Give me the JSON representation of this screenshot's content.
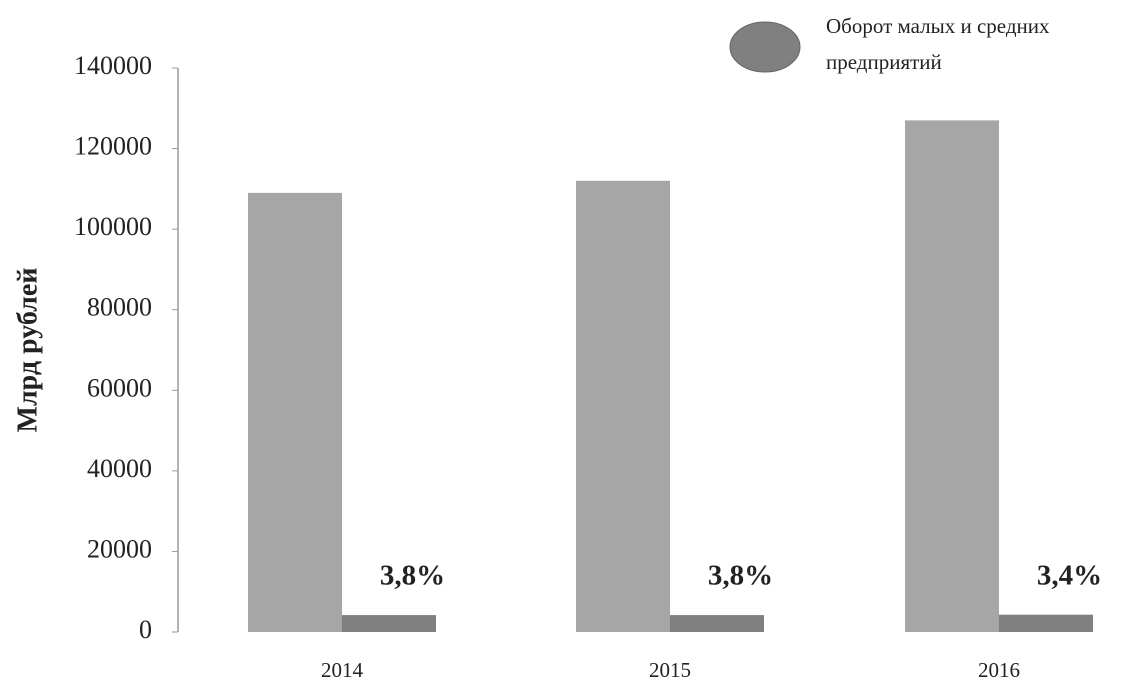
{
  "chart_data": {
    "type": "bar",
    "y_label": "Млрд рублей",
    "categories": [
      "2014",
      "2015",
      "2016"
    ],
    "series": [
      {
        "color": "#a6a6a6",
        "values": [
          109000,
          112000,
          127000
        ]
      },
      {
        "name": "Оборот малых и средних предприятий",
        "color": "#808080",
        "values": [
          4200,
          4200,
          4300
        ]
      }
    ],
    "annotations": [
      "3,8%",
      "3,8%",
      "3,4%"
    ],
    "ylim": [
      0,
      140000
    ],
    "yticks": [
      0,
      20000,
      40000,
      60000,
      80000,
      100000,
      120000,
      140000
    ],
    "grid": false
  }
}
